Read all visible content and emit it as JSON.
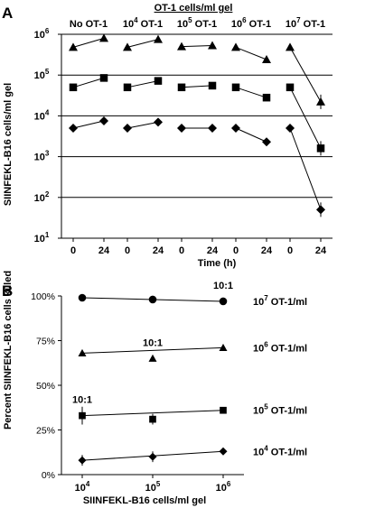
{
  "chart_data": [
    {
      "type": "line",
      "panel_label": "A",
      "title": "OT-1 cells/ml gel",
      "ylabel": "SIINFEKL-B16 cells/ml gel",
      "xlabel": "Time (h)",
      "yscale": "log",
      "ylim": [
        10,
        1000000
      ],
      "yticks": [
        {
          "base": "10",
          "exp": "6"
        },
        {
          "base": "10",
          "exp": "5"
        },
        {
          "base": "10",
          "exp": "4"
        },
        {
          "base": "10",
          "exp": "3"
        },
        {
          "base": "10",
          "exp": "2"
        },
        {
          "base": "10",
          "exp": "1"
        }
      ],
      "grid": true,
      "groups": [
        {
          "label": "No OT-1",
          "x": [
            "0",
            "24"
          ]
        },
        {
          "label_base": "10",
          "label_exp": "4",
          "label_suffix": " OT-1",
          "x": [
            "0",
            "24"
          ]
        },
        {
          "label_base": "10",
          "label_exp": "5",
          "label_suffix": " OT-1",
          "x": [
            "0",
            "24"
          ]
        },
        {
          "label_base": "10",
          "label_exp": "6",
          "label_suffix": " OT-1",
          "x": [
            "0",
            "24"
          ]
        },
        {
          "label_base": "10",
          "label_exp": "7",
          "label_suffix": " OT-1",
          "x": [
            "0",
            "24"
          ]
        }
      ],
      "series": [
        {
          "marker": "triangle",
          "values": [
            [
              480000,
              800000
            ],
            [
              480000,
              750000
            ],
            [
              500000,
              530000
            ],
            [
              480000,
              240000
            ],
            [
              480000,
              22000
            ]
          ]
        },
        {
          "marker": "square",
          "values": [
            [
              50000,
              85000
            ],
            [
              50000,
              72000
            ],
            [
              50000,
              55000
            ],
            [
              50000,
              28000
            ],
            [
              50000,
              1600
            ]
          ]
        },
        {
          "marker": "diamond",
          "values": [
            [
              5000,
              7500
            ],
            [
              5000,
              7000
            ],
            [
              5000,
              5000
            ],
            [
              5000,
              2300
            ],
            [
              5000,
              50
            ]
          ]
        }
      ]
    },
    {
      "type": "line",
      "panel_label": "B",
      "ylabel": "Percent SIINFEKL-B16 cells killed",
      "xlabel": "SIINFEKL-B16 cells/ml gel",
      "xscale": "log",
      "xticks": [
        {
          "base": "10",
          "exp": "4"
        },
        {
          "base": "10",
          "exp": "5"
        },
        {
          "base": "10",
          "exp": "6"
        }
      ],
      "yticks": [
        "100%",
        "75%",
        "50%",
        "25%",
        "0%"
      ],
      "ylim": [
        0,
        100
      ],
      "grid": false,
      "x": [
        10000,
        100000,
        1000000
      ],
      "series": [
        {
          "marker": "circle",
          "values": [
            99,
            98,
            97
          ],
          "label_base": "10",
          "label_exp": "7",
          "label_suffix": " OT-1/ml"
        },
        {
          "marker": "triangle",
          "values": [
            68,
            65,
            71
          ],
          "label_base": "10",
          "label_exp": "6",
          "label_suffix": " OT-1/ml"
        },
        {
          "marker": "square",
          "values": [
            33,
            31,
            36
          ],
          "label_base": "10",
          "label_exp": "5",
          "label_suffix": " OT-1/ml"
        },
        {
          "marker": "diamond",
          "values": [
            8,
            10,
            13
          ],
          "label_base": "10",
          "label_exp": "4",
          "label_suffix": " OT-1/ml"
        }
      ],
      "annotations": [
        "10:1",
        "10:1",
        "10:1"
      ]
    }
  ]
}
